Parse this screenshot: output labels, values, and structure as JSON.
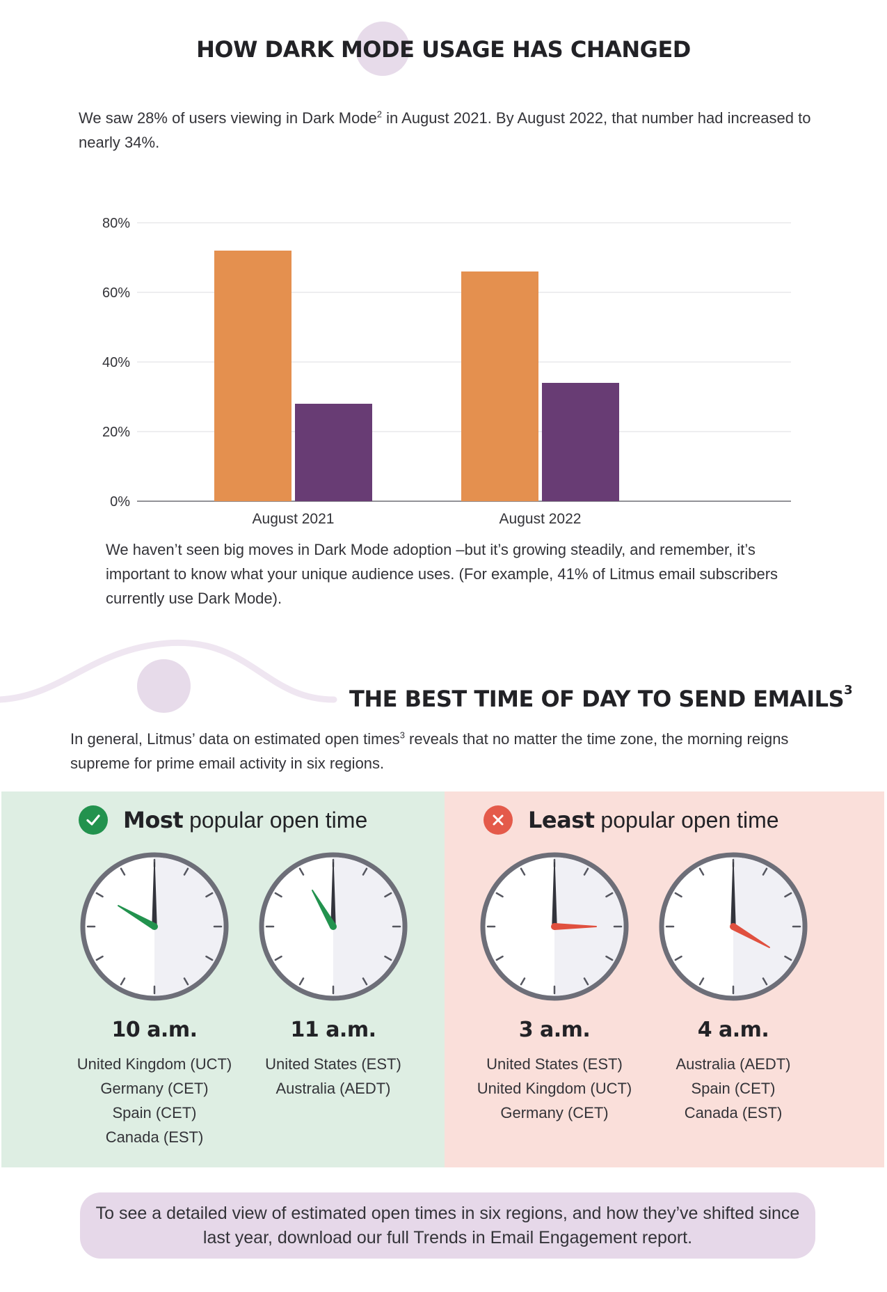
{
  "section1": {
    "title": "HOW DARK MODE USAGE HAS CHANGED",
    "intro_a": "We saw 28% of users viewing in Dark Mode",
    "intro_sup": "2",
    "intro_b": " in August 2021. By August 2022, that number had increased to nearly 34%.",
    "note": "We haven’t seen big moves in Dark Mode adoption –but it’s growing steadily, and remember, it’s important to know what your unique audience uses. (For example, 41% of Litmus email subscribers currently use Dark Mode)."
  },
  "chart_data": {
    "type": "bar",
    "categories": [
      "August 2021",
      "August 2022"
    ],
    "series": [
      {
        "values": [
          72,
          66
        ],
        "color": "#e4904f"
      },
      {
        "values": [
          28,
          34
        ],
        "color": "#683c74"
      }
    ],
    "yticks": [
      0,
      20,
      40,
      60,
      80
    ],
    "tick_suffix": "%",
    "ylim": [
      0,
      80
    ],
    "grid": true,
    "xlabel": "",
    "ylabel": ""
  },
  "section2": {
    "title": "THE BEST TIME OF DAY TO SEND EMAILS",
    "title_sup": "3",
    "intro_a": "In general, Litmus’ data on estimated open times",
    "intro_sup": "3",
    "intro_b": " reveals that no matter the time zone, the morning reigns supreme for prime email activity in six regions."
  },
  "most": {
    "bold": "Most",
    "rest": " popular open time",
    "panel_color": "#deeee3",
    "badge_color": "#22924e",
    "hand_color": "#22924e",
    "icon": "check-icon",
    "clocks": [
      {
        "time": "10 a.m.",
        "hour": 10,
        "regions": [
          "United Kingdom (UCT)",
          "Germany (CET)",
          "Spain (CET)",
          "Canada (EST)"
        ]
      },
      {
        "time": "11 a.m.",
        "hour": 11,
        "regions": [
          "United States (EST)",
          "Australia (AEDT)"
        ]
      }
    ]
  },
  "least": {
    "bold": "Least",
    "rest": " popular open time",
    "panel_color": "#fadfda",
    "badge_color": "#e45a4a",
    "hand_color": "#e0503f",
    "icon": "close-icon",
    "clocks": [
      {
        "time": "3 a.m.",
        "hour": 3,
        "regions": [
          "United States (EST)",
          "United Kingdom (UCT)",
          "Germany (CET)"
        ]
      },
      {
        "time": "4 a.m.",
        "hour": 4,
        "regions": [
          "Australia (AEDT)",
          "Spain (CET)",
          "Canada (EST)"
        ]
      }
    ]
  },
  "cta": {
    "text": "To see a detailed view of estimated open times in six regions, and how they’ve shifted since last year, download our full Trends in Email Engagement report."
  }
}
